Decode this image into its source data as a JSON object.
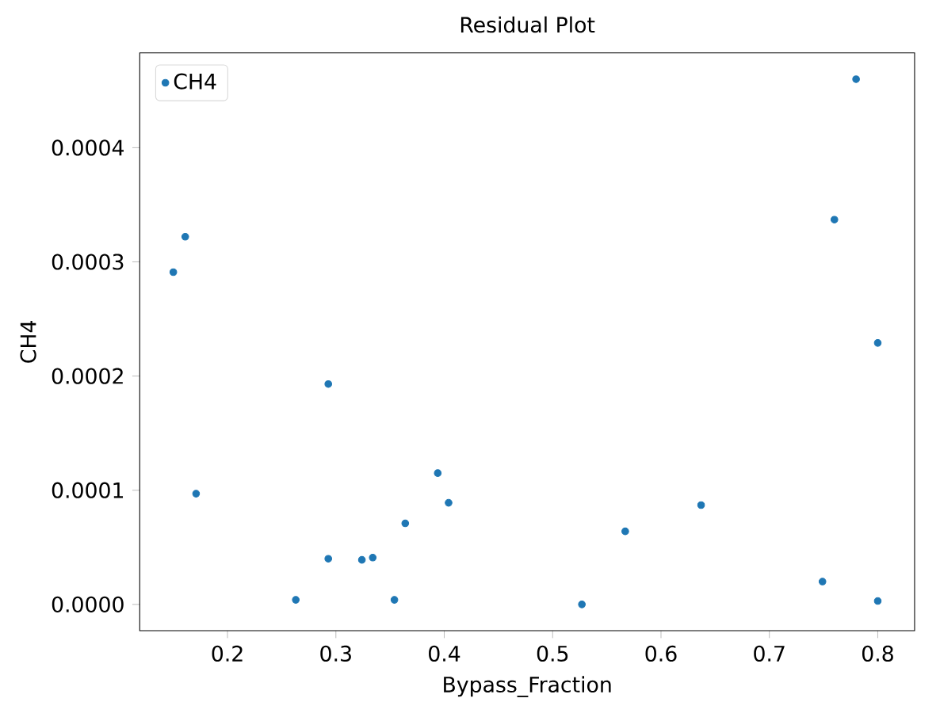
{
  "chart_data": {
    "type": "scatter",
    "title": "Residual Plot",
    "xlabel": "Bypass_Fraction",
    "ylabel": "CH4",
    "xlim": [
      0.119,
      0.834
    ],
    "ylim": [
      -2.3e-05,
      0.000483
    ],
    "xticks": [
      {
        "value": 0.2,
        "label": "0.2"
      },
      {
        "value": 0.3,
        "label": "0.3"
      },
      {
        "value": 0.4,
        "label": "0.4"
      },
      {
        "value": 0.5,
        "label": "0.5"
      },
      {
        "value": 0.6,
        "label": "0.6"
      },
      {
        "value": 0.7,
        "label": "0.7"
      },
      {
        "value": 0.8,
        "label": "0.8"
      }
    ],
    "yticks": [
      {
        "value": 0,
        "label": "0.0000"
      },
      {
        "value": 0.0001,
        "label": "0.0001"
      },
      {
        "value": 0.0002,
        "label": "0.0002"
      },
      {
        "value": 0.0003,
        "label": "0.0003"
      },
      {
        "value": 0.0004,
        "label": "0.0004"
      }
    ],
    "legend": "top left",
    "marker": "circle",
    "grid": false,
    "series": [
      {
        "name": "CH4",
        "color": "#1f77b4",
        "x": [
          0.15,
          0.161,
          0.171,
          0.263,
          0.293,
          0.293,
          0.324,
          0.334,
          0.354,
          0.364,
          0.394,
          0.404,
          0.527,
          0.567,
          0.637,
          0.749,
          0.76,
          0.78,
          0.8,
          0.8
        ],
        "values": [
          0.000291,
          0.000322,
          9.7e-05,
          4e-06,
          0.000193,
          4e-05,
          3.9e-05,
          4.1e-05,
          4e-06,
          7.1e-05,
          0.000115,
          8.9e-05,
          0,
          6.4e-05,
          8.7e-05,
          2e-05,
          0.000337,
          0.00046,
          0.000229,
          3e-06
        ]
      }
    ]
  }
}
